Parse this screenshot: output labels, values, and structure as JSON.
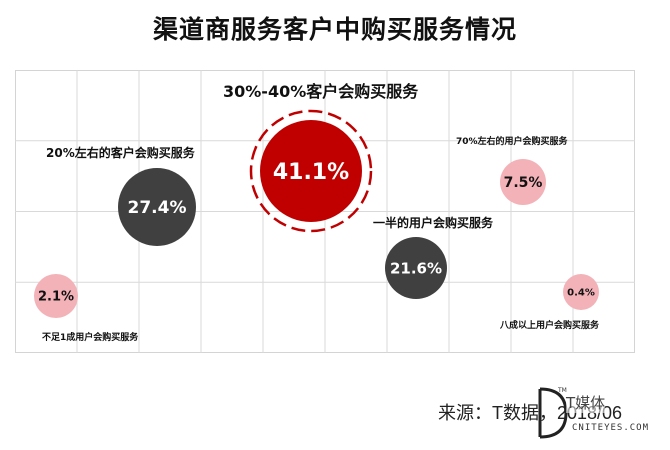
{
  "title": "渠道商服务客户中购买服务情况",
  "chart_data": {
    "type": "bubble",
    "title": "渠道商服务客户中购买服务情况",
    "grid": true,
    "points": [
      {
        "label": "不足1成用户会购买服务",
        "value": 2.1,
        "display": "2.1%",
        "color": "#f2b2b8",
        "text_color": "#111111"
      },
      {
        "label": "20%左右的客户会购买服务",
        "value": 27.4,
        "display": "27.4%",
        "color": "#404040",
        "text_color": "#ffffff"
      },
      {
        "label": "30%-40%客户会购买服务",
        "value": 41.1,
        "display": "41.1%",
        "color": "#c00000",
        "text_color": "#ffffff",
        "highlight": true
      },
      {
        "label": "一半的用户会购买服务",
        "value": 21.6,
        "display": "21.6%",
        "color": "#404040",
        "text_color": "#ffffff"
      },
      {
        "label": "70%左右的用户会购买服务",
        "value": 7.5,
        "display": "7.5%",
        "color": "#f2b2b8",
        "text_color": "#111111"
      },
      {
        "label": "八成以上用户会购买服务",
        "value": 0.4,
        "display": "0.4%",
        "color": "#f2b2b8",
        "text_color": "#111111"
      }
    ]
  },
  "source": "来源：T数据，2018/06",
  "logo": {
    "brand": "T媒体",
    "site": "CNITEYES.COM",
    "tm": "TM"
  }
}
